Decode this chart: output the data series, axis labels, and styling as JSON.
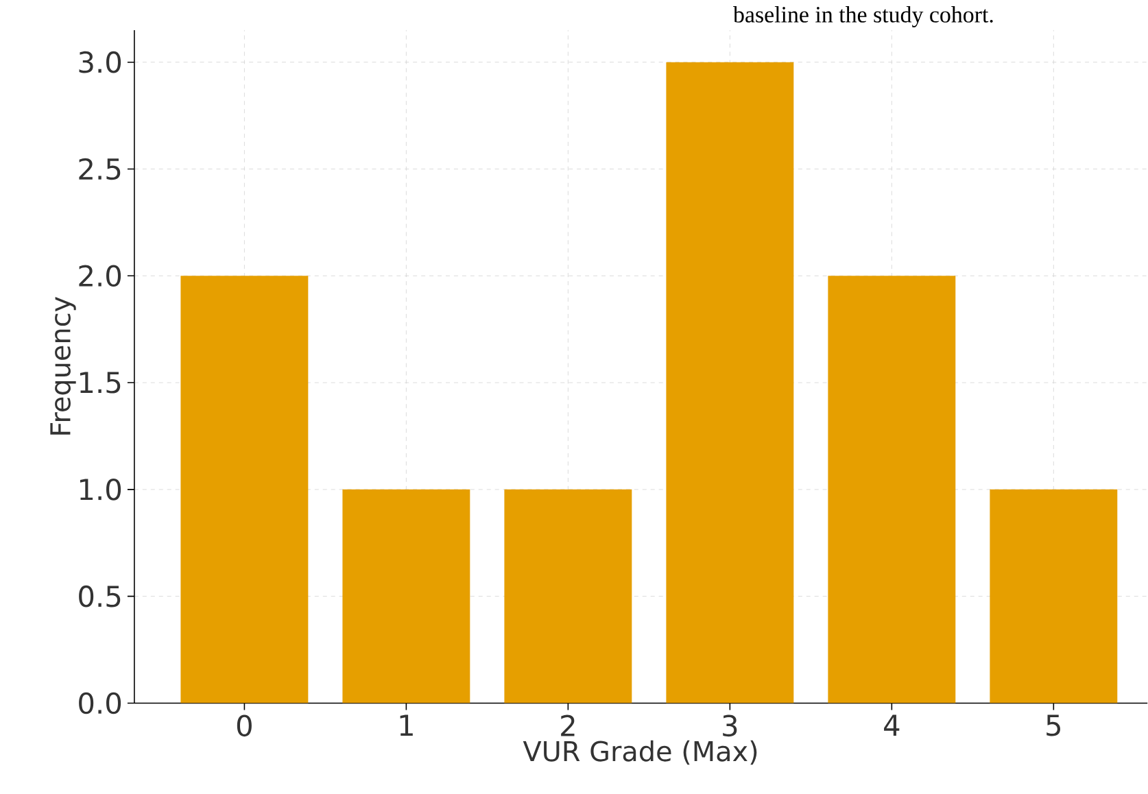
{
  "chart_data": {
    "type": "bar",
    "xlabel": "VUR Grade (Max)",
    "ylabel": "Frequency",
    "annotations": [
      "baseline in the study cohort."
    ],
    "categories": [
      "0",
      "1",
      "2",
      "3",
      "4",
      "5"
    ],
    "values": [
      2,
      1,
      1,
      3,
      2,
      1
    ],
    "color": "#e69f00",
    "ylim": [
      0,
      3.15
    ],
    "yticks": [
      {
        "value": 0,
        "label": "0.0"
      },
      {
        "value": 0.5,
        "label": "0.5"
      },
      {
        "value": 1,
        "label": "1.0"
      },
      {
        "value": 1.5,
        "label": "1.5"
      },
      {
        "value": 2,
        "label": "2.0"
      },
      {
        "value": 2.5,
        "label": "2.5"
      },
      {
        "value": 3,
        "label": "3.0"
      }
    ],
    "grid": true
  }
}
